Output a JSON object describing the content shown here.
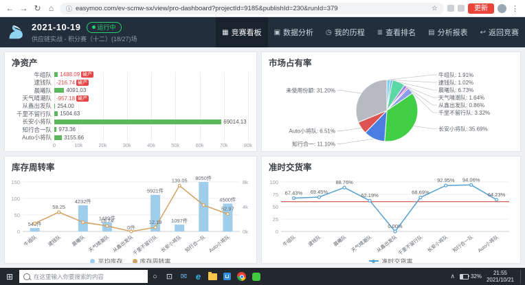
{
  "browser": {
    "url": "easymoo.com/ev-scmw-sx/view/pro-dashboard?projectId=9185&publishId=230&runId=379",
    "update_label": "更新"
  },
  "icons": {
    "back": "←",
    "forward": "→",
    "reload": "↻",
    "home": "⌂",
    "info": "ⓘ",
    "star": "☆",
    "kebab": "⋮",
    "start": "⊞",
    "cortana": "○",
    "taskview": "⊡",
    "mail": "✉",
    "edge": "e",
    "chevron_up": "∧"
  },
  "header": {
    "date": "2021-10-19",
    "status": "运行中",
    "subtitle": "供应链实战 - 积分赛（十二）(18/27)场",
    "nav": [
      {
        "label": "竞赛看板",
        "icon": "▦"
      },
      {
        "label": "数据分析",
        "icon": "▣"
      },
      {
        "label": "我的历程",
        "icon": "◷"
      },
      {
        "label": "查看排名",
        "icon": "≣"
      },
      {
        "label": "分析报表",
        "icon": "▤"
      },
      {
        "label": "返回竞赛",
        "icon": "↩"
      }
    ]
  },
  "chart_data": [
    {
      "id": "net_assets",
      "type": "bar",
      "title": "净资产",
      "orientation": "horizontal",
      "categories": [
        "牛组队",
        "逮钱队",
        "晨曦队",
        "天气晴潮队",
        "从鑫出发队",
        "千里不留行队",
        "长安小将队",
        "知行合一队",
        "Auto小将队"
      ],
      "values": [
        1488.09,
        -216.74,
        4091.03,
        -957.18,
        254.0,
        1504.63,
        69014.13,
        973.36,
        3155.66
      ],
      "value_labels": [
        "1488.09",
        "-216.74",
        "4091.03",
        "-957.18",
        "254.00",
        "1504.63",
        "69014.13",
        "973.36",
        "3155.66"
      ],
      "bankrupt": [
        true,
        true,
        false,
        true,
        false,
        false,
        false,
        false,
        false
      ],
      "bankrupt_badge": "破产",
      "xlim": [
        0,
        80000
      ],
      "x_ticks": [
        "0",
        "10k",
        "20k",
        "30k",
        "40k",
        "50k",
        "60k",
        "70k",
        "80k"
      ],
      "bar_color": "#5cb85c"
    },
    {
      "id": "market_share",
      "type": "pie",
      "title": "市场占有率",
      "unit": "%",
      "slices": [
        {
          "label": "牛组队",
          "value": 1.91,
          "color": "#85d2f0"
        },
        {
          "label": "逮钱队",
          "value": 1.02,
          "color": "#4f9fd6"
        },
        {
          "label": "晨曦队",
          "value": 6.73,
          "color": "#5ad8a6"
        },
        {
          "label": "天气晴潮队",
          "value": 1.64,
          "color": "#a57ae0"
        },
        {
          "label": "从鑫出发队",
          "value": 0.86,
          "color": "#e661c8"
        },
        {
          "label": "千里不留行队",
          "value": 3.32,
          "color": "#8d9ce8"
        },
        {
          "label": "长安小将队",
          "value": 35.69,
          "color": "#41cf45"
        },
        {
          "label": "知行合一",
          "value": 11.1,
          "color": "#4a7de0"
        },
        {
          "label": "Auto小将队",
          "value": 6.51,
          "color": "#dd5353"
        },
        {
          "label": "未使用份额",
          "value": 31.2,
          "color": "#b7bbc1"
        }
      ]
    },
    {
      "id": "inventory",
      "type": "bar+line",
      "title": "库存周转率",
      "categories": [
        "牛组队",
        "逮钱队",
        "晨曦队",
        "天气晴潮队",
        "从鑫出发队",
        "千里不留行队",
        "长安小将队",
        "知行合一队",
        "Auto小将队"
      ],
      "left_axis": {
        "max": 150,
        "ticks": [
          "0",
          "50",
          "100",
          "150"
        ]
      },
      "right_axis": {
        "max": 8000,
        "ticks": [
          "0k",
          "4k",
          "8k"
        ]
      },
      "series": [
        {
          "name": "平均库存",
          "type": "bar",
          "unit": "件",
          "color": "#9fcdec",
          "values": [
            546,
            0,
            4232,
            1489,
            0,
            5921,
            1097,
            8050,
            4500
          ],
          "value_labels": [
            "546件",
            "",
            "4232件",
            "1489件",
            "0件",
            "5921件",
            "1097件",
            "8050件",
            "4500件"
          ]
        },
        {
          "name": "库存周转率",
          "type": "line",
          "color": "#d3a15f",
          "values": [
            24.5,
            58.25,
            28.0,
            16.74,
            0,
            12.19,
            139.05,
            79.8,
            52.97
          ],
          "value_labels": [
            "",
            "58.25",
            "",
            "16.74",
            "",
            "12.19",
            "139.05",
            "",
            "52.97"
          ]
        }
      ]
    },
    {
      "id": "delivery",
      "type": "line",
      "title": "准时交货率",
      "legend": "准时交货率",
      "categories": [
        "牛组队",
        "逮钱队",
        "晨曦队",
        "天气晴潮队",
        "从鑫出发队",
        "千里不留行队",
        "长安小将队",
        "知行合一队",
        "Auto小将队"
      ],
      "values": [
        67.43,
        69.45,
        88.76,
        62.19,
        0.0,
        68.69,
        92.95,
        94.06,
        64.23
      ],
      "value_labels": [
        "67.43%",
        "69.45%",
        "88.76%",
        "62.19%",
        "0.00%",
        "68.69%",
        "92.95%",
        "94.06%",
        "64.23%"
      ],
      "ylim": [
        0,
        100
      ],
      "y_ticks": [
        "0",
        "25",
        "50",
        "75",
        "100"
      ],
      "reference_value": 60,
      "reference_color": "#c0392b",
      "line_color": "#56a0d3"
    }
  ],
  "taskbar": {
    "search_placeholder": "在这里输入你要搜索的内容",
    "tray": {
      "battery": "32%",
      "time": "21:55",
      "date": "2021/10/21"
    }
  }
}
